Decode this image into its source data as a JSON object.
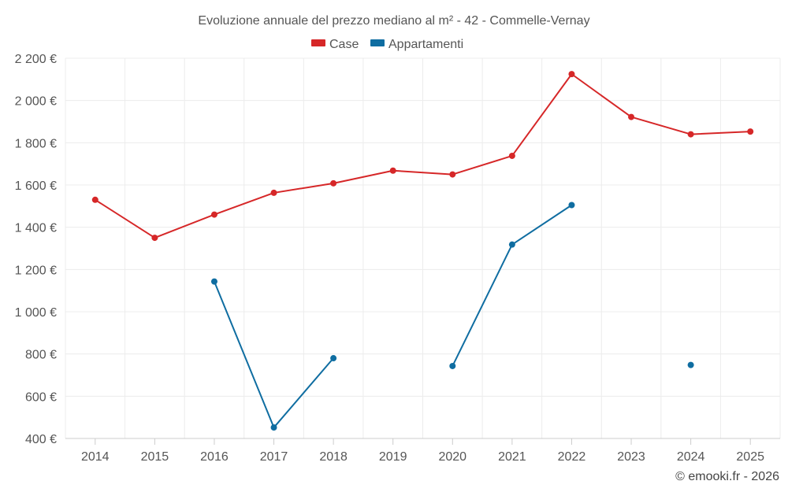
{
  "chart_data": {
    "type": "line",
    "title": "Evoluzione annuale del prezzo mediano al m² - 42 - Commelle-Vernay",
    "categories": [
      "2014",
      "2015",
      "2016",
      "2017",
      "2018",
      "2019",
      "2020",
      "2021",
      "2022",
      "2023",
      "2024",
      "2025"
    ],
    "ylim": [
      400,
      2200
    ],
    "yticks": [
      400,
      600,
      800,
      1000,
      1200,
      1400,
      1600,
      1800,
      2000,
      2200
    ],
    "ytick_labels": [
      "400 €",
      "600 €",
      "800 €",
      "1 000 €",
      "1 200 €",
      "1 400 €",
      "1 600 €",
      "1 800 €",
      "2 000 €",
      "2 200 €"
    ],
    "series": [
      {
        "name": "Case",
        "color": "#d62728",
        "values": [
          1530,
          1350,
          1460,
          1563,
          1608,
          1668,
          1650,
          1738,
          2125,
          1922,
          1840,
          1853
        ]
      },
      {
        "name": "Appartamenti",
        "color": "#0f6da1",
        "values": [
          null,
          null,
          1143,
          452,
          780,
          null,
          743,
          1318,
          1505,
          null,
          748,
          null
        ]
      }
    ],
    "legend_position": "top-center",
    "grid": true,
    "credit": "© emooki.fr - 2026"
  }
}
